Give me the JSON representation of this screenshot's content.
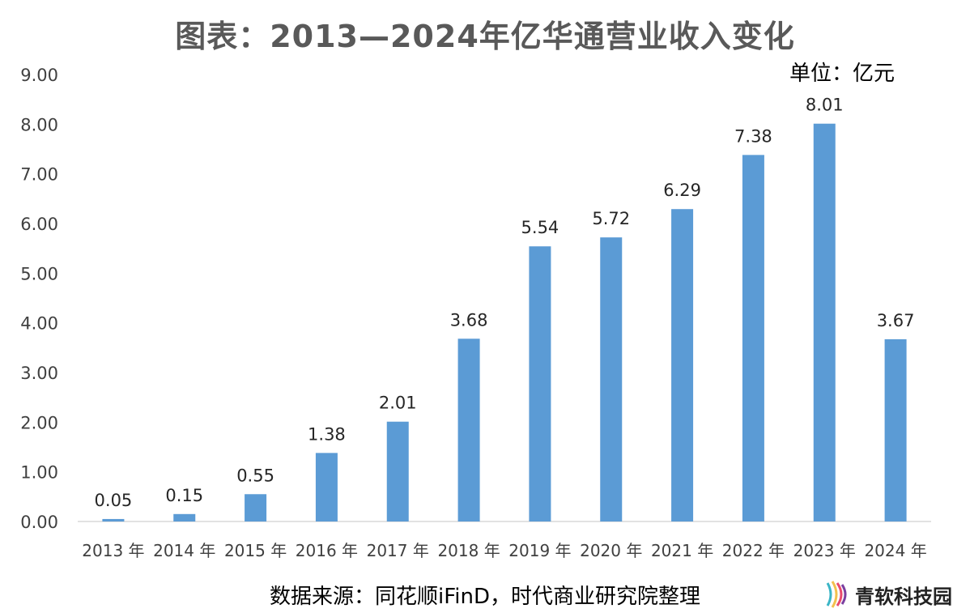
{
  "title": "图表：2013—2024年亿华通营业收入变化",
  "unit": "单位：亿元",
  "source": "数据来源：同花顺iFinD，时代商业研究院整理",
  "watermark": {
    "text": "青软科技园",
    "icon": "logo-icon",
    "colors": [
      "#3ab5c6",
      "#f2c14e",
      "#e94b6e",
      "#7a3fa0"
    ]
  },
  "colors": {
    "bar": "#5b9bd5",
    "axis": "#d9d9d9",
    "text": "#404040"
  },
  "chart_data": {
    "type": "bar",
    "title": "图表：2013—2024年亿华通营业收入变化",
    "xlabel": "",
    "ylabel": "",
    "unit": "单位：亿元",
    "categories": [
      "2013 年",
      "2014 年",
      "2015 年",
      "2016 年",
      "2017 年",
      "2018 年",
      "2019 年",
      "2020 年",
      "2021 年",
      "2022 年",
      "2023 年",
      "2024 年"
    ],
    "values": [
      0.05,
      0.15,
      0.55,
      1.38,
      2.01,
      3.68,
      5.54,
      5.72,
      6.29,
      7.38,
      8.01,
      3.67
    ],
    "data_labels": [
      "0.05",
      "0.15",
      "0.55",
      "1.38",
      "2.01",
      "3.68",
      "5.54",
      "5.72",
      "6.29",
      "7.38",
      "8.01",
      "3.67"
    ],
    "ylim": [
      0,
      9
    ],
    "yticks": [
      "0.00",
      "1.00",
      "2.00",
      "3.00",
      "4.00",
      "5.00",
      "6.00",
      "7.00",
      "8.00",
      "9.00"
    ],
    "grid": false,
    "legend": "none"
  }
}
